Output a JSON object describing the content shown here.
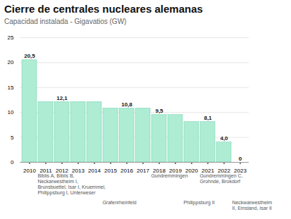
{
  "chart_data": {
    "type": "bar",
    "title": "Cierre de centrales nucleares alemanas",
    "subtitle": "Capacidad instalada - Gigavatios (GW)",
    "categories": [
      "2010",
      "2011",
      "2012",
      "2013",
      "2014",
      "2015",
      "2016",
      "2017",
      "2018",
      "2019",
      "2020",
      "2021",
      "2022",
      "2023"
    ],
    "values": [
      20.5,
      12.1,
      12.1,
      12.1,
      12.1,
      10.8,
      10.8,
      10.8,
      9.5,
      9.5,
      8.1,
      8.1,
      4.0,
      0.0
    ],
    "value_labels": [
      "20,5",
      null,
      "12,1",
      null,
      null,
      null,
      "10,8",
      null,
      "9,5",
      null,
      null,
      "8,1",
      "4,0",
      "0"
    ],
    "color": "#aeecd4",
    "ylim": [
      0,
      25
    ],
    "yticks": [
      0,
      5,
      10,
      15,
      20,
      25
    ],
    "grid": true,
    "annotations": [
      {
        "x": "2011",
        "text": "Biblis A, Biblis B,\nNeckarwestheim I,\nBrunsbuettel, Isar I, Kruemmel,\nPhilippsburg I, Unterweser"
      },
      {
        "x": "2015",
        "text": "Grafenrheinfeld"
      },
      {
        "x": "2018",
        "text": "Gundremmingen"
      },
      {
        "x": "2020",
        "text": "Philippsburg II"
      },
      {
        "x": "2021",
        "text": "Gundremmingen C,\nGrohnde, Brokdorf"
      },
      {
        "x": "2023",
        "text": "Neckwarwestheim\nII, Emsland, Isar II"
      }
    ]
  }
}
